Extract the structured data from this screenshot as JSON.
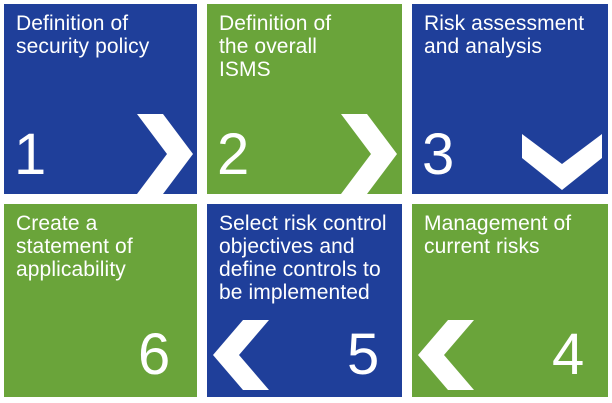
{
  "tiles": [
    {
      "id": "t1",
      "text": "Definition of\nsecurity policy",
      "number": "1",
      "arrow": "right",
      "color": "#1f3f9a"
    },
    {
      "id": "t2",
      "text": "Definition of\nthe overall\nISMS",
      "number": "2",
      "arrow": "right",
      "color": "#6aa43a"
    },
    {
      "id": "t3",
      "text": "Risk assessment\nand analysis",
      "number": "3",
      "arrow": "down",
      "color": "#1f3f9a"
    },
    {
      "id": "t4",
      "text": "Management of\ncurrent risks",
      "number": "4",
      "arrow": "left",
      "color": "#6aa43a"
    },
    {
      "id": "t5",
      "text": "Select risk control\nobjectives and\ndefine controls to\nbe implemented",
      "number": "5",
      "arrow": "left",
      "color": "#1f3f9a"
    },
    {
      "id": "t6",
      "text": "Create a\nstatement of\napplicability",
      "number": "6",
      "arrow": "none",
      "color": "#6aa43a"
    }
  ]
}
